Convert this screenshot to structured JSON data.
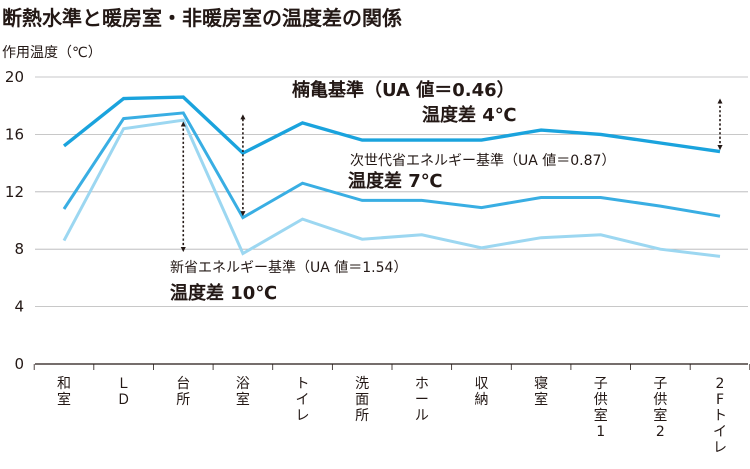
{
  "page": {
    "title": "断熱水準と暖房室・非暖房室の温度差の関係"
  },
  "chart_data": {
    "type": "line",
    "title": "断熱水準と暖房室・非暖房室の温度差の関係",
    "ylabel": "作用温度（℃）",
    "xlabel": "",
    "ylim": [
      0,
      20
    ],
    "yticks": [
      0,
      4,
      8,
      12,
      16,
      20
    ],
    "categories": [
      [
        "和",
        "室"
      ],
      [
        "Ｌ",
        "Ｄ"
      ],
      [
        "台",
        "所"
      ],
      [
        "浴",
        "室"
      ],
      [
        "ト",
        "イ",
        "レ"
      ],
      [
        "洗",
        "面",
        "所"
      ],
      [
        "ホ",
        "ー",
        "ル"
      ],
      [
        "収",
        "納"
      ],
      [
        "寝",
        "室"
      ],
      [
        "子",
        "供",
        "室",
        "1"
      ],
      [
        "子",
        "供",
        "室",
        "2"
      ],
      [
        "2",
        "F",
        "ト",
        "イ",
        "レ"
      ]
    ],
    "series": [
      {
        "name": "楠亀基準",
        "color": "#1aa3dd",
        "width": 3.4,
        "values": [
          15.2,
          18.5,
          18.6,
          14.7,
          16.8,
          15.6,
          15.6,
          15.6,
          16.3,
          16.0,
          15.4,
          14.8
        ]
      },
      {
        "name": "次世代省エネルギー基準",
        "color": "#39aee3",
        "width": 3.0,
        "values": [
          10.8,
          17.1,
          17.5,
          10.2,
          12.6,
          11.4,
          11.4,
          10.9,
          11.6,
          11.6,
          11.0,
          10.3
        ]
      },
      {
        "name": "新省エネルギー基準",
        "color": "#9cd7f1",
        "width": 3.0,
        "values": [
          8.6,
          16.4,
          17.0,
          7.7,
          10.1,
          8.7,
          9.0,
          8.1,
          8.8,
          9.0,
          8.0,
          7.5
        ]
      }
    ],
    "annotations": [
      {
        "id": "kusukame_label",
        "text": "楠亀基準（UA 値＝0.46）"
      },
      {
        "id": "kusukame_diff",
        "text": "温度差 4℃"
      },
      {
        "id": "jisedai_label",
        "text": "次世代省エネルギー基準（UA 値＝0.87）"
      },
      {
        "id": "jisedai_diff",
        "text": "温度差 7℃"
      },
      {
        "id": "shin_label",
        "text": "新省エネルギー基準（UA 値＝1.54）"
      },
      {
        "id": "shin_diff",
        "text": "温度差 10℃"
      }
    ],
    "difference_arrows": [
      {
        "category_index": 11,
        "from": 14.8,
        "to": 18.6
      },
      {
        "category_index": 3,
        "from": 10.2,
        "to": 17.5
      },
      {
        "category_index": 2,
        "from": 7.7,
        "to": 17.0
      }
    ]
  }
}
